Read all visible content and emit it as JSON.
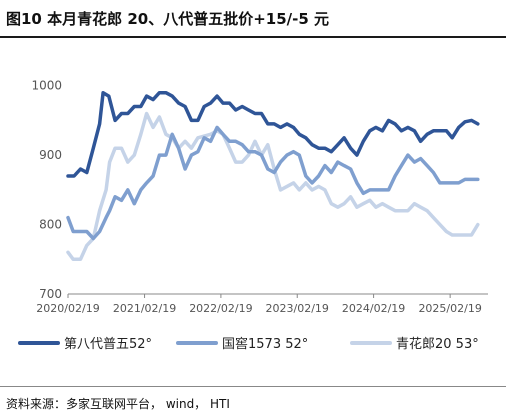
{
  "header": {
    "title": "图10 本月青花郎 20、八代普五批价+15/-5 元"
  },
  "footer": {
    "source": "资料来源：多家互联网平台， wind， HTI"
  },
  "colors": {
    "s1": "#2f5597",
    "s2": "#7f9fcf",
    "s3": "#c5d3e8",
    "axis": "#888888",
    "text": "#555555"
  },
  "chart_data": {
    "type": "line",
    "ylim": [
      700,
      1050
    ],
    "yticks": [
      700,
      800,
      900,
      1000
    ],
    "xlim": [
      "2020-02-19",
      "2025-08-19"
    ],
    "xticks": [
      "2020/02/19",
      "2021/02/19",
      "2022/02/19",
      "2023/02/19",
      "2024/02/19",
      "2025/02/19"
    ],
    "grid": false,
    "legend_position": "bottom",
    "series": [
      {
        "name": "第八代普五52°",
        "points": [
          [
            "2020-02-19",
            870
          ],
          [
            "2020-03-19",
            870
          ],
          [
            "2020-04-19",
            880
          ],
          [
            "2020-05-19",
            875
          ],
          [
            "2020-06-19",
            910
          ],
          [
            "2020-07-19",
            945
          ],
          [
            "2020-08-05",
            990
          ],
          [
            "2020-09-01",
            985
          ],
          [
            "2020-10-01",
            950
          ],
          [
            "2020-11-01",
            960
          ],
          [
            "2020-12-01",
            960
          ],
          [
            "2021-01-01",
            970
          ],
          [
            "2021-02-01",
            970
          ],
          [
            "2021-03-01",
            985
          ],
          [
            "2021-04-01",
            980
          ],
          [
            "2021-05-01",
            990
          ],
          [
            "2021-06-01",
            990
          ],
          [
            "2021-07-01",
            985
          ],
          [
            "2021-08-01",
            975
          ],
          [
            "2021-09-01",
            970
          ],
          [
            "2021-10-01",
            950
          ],
          [
            "2021-11-01",
            950
          ],
          [
            "2021-12-01",
            970
          ],
          [
            "2022-01-01",
            975
          ],
          [
            "2022-02-01",
            985
          ],
          [
            "2022-03-01",
            975
          ],
          [
            "2022-04-01",
            975
          ],
          [
            "2022-05-01",
            965
          ],
          [
            "2022-06-01",
            970
          ],
          [
            "2022-07-01",
            965
          ],
          [
            "2022-08-01",
            960
          ],
          [
            "2022-09-01",
            960
          ],
          [
            "2022-10-01",
            945
          ],
          [
            "2022-11-01",
            945
          ],
          [
            "2022-12-01",
            940
          ],
          [
            "2023-01-01",
            945
          ],
          [
            "2023-02-01",
            940
          ],
          [
            "2023-03-01",
            930
          ],
          [
            "2023-04-01",
            925
          ],
          [
            "2023-05-01",
            915
          ],
          [
            "2023-06-01",
            910
          ],
          [
            "2023-07-01",
            910
          ],
          [
            "2023-08-01",
            905
          ],
          [
            "2023-09-01",
            915
          ],
          [
            "2023-10-01",
            925
          ],
          [
            "2023-11-01",
            910
          ],
          [
            "2023-12-01",
            900
          ],
          [
            "2024-01-01",
            920
          ],
          [
            "2024-02-01",
            935
          ],
          [
            "2024-03-01",
            940
          ],
          [
            "2024-04-01",
            935
          ],
          [
            "2024-05-01",
            950
          ],
          [
            "2024-06-01",
            945
          ],
          [
            "2024-07-01",
            935
          ],
          [
            "2024-08-01",
            940
          ],
          [
            "2024-09-01",
            935
          ],
          [
            "2024-10-01",
            920
          ],
          [
            "2024-11-01",
            930
          ],
          [
            "2024-12-01",
            935
          ],
          [
            "2025-01-01",
            935
          ],
          [
            "2025-02-01",
            935
          ],
          [
            "2025-03-01",
            925
          ],
          [
            "2025-04-01",
            940
          ],
          [
            "2025-05-01",
            948
          ],
          [
            "2025-06-01",
            950
          ],
          [
            "2025-07-01",
            945
          ]
        ]
      },
      {
        "name": "国窖1573 52°",
        "points": [
          [
            "2020-02-19",
            810
          ],
          [
            "2020-03-15",
            790
          ],
          [
            "2020-04-19",
            790
          ],
          [
            "2020-05-19",
            790
          ],
          [
            "2020-06-19",
            780
          ],
          [
            "2020-07-19",
            790
          ],
          [
            "2020-08-19",
            810
          ],
          [
            "2020-09-05",
            820
          ],
          [
            "2020-10-01",
            840
          ],
          [
            "2020-11-01",
            835
          ],
          [
            "2020-12-01",
            850
          ],
          [
            "2021-01-01",
            830
          ],
          [
            "2021-02-01",
            850
          ],
          [
            "2021-03-01",
            860
          ],
          [
            "2021-04-01",
            870
          ],
          [
            "2021-05-01",
            900
          ],
          [
            "2021-06-01",
            900
          ],
          [
            "2021-07-01",
            930
          ],
          [
            "2021-08-01",
            910
          ],
          [
            "2021-09-01",
            880
          ],
          [
            "2021-10-01",
            900
          ],
          [
            "2021-11-01",
            905
          ],
          [
            "2021-12-01",
            925
          ],
          [
            "2022-01-01",
            920
          ],
          [
            "2022-02-01",
            940
          ],
          [
            "2022-03-01",
            930
          ],
          [
            "2022-04-01",
            920
          ],
          [
            "2022-05-01",
            920
          ],
          [
            "2022-06-01",
            915
          ],
          [
            "2022-07-01",
            905
          ],
          [
            "2022-08-01",
            905
          ],
          [
            "2022-09-01",
            900
          ],
          [
            "2022-10-01",
            880
          ],
          [
            "2022-11-01",
            875
          ],
          [
            "2022-12-01",
            890
          ],
          [
            "2023-01-01",
            900
          ],
          [
            "2023-02-01",
            905
          ],
          [
            "2023-03-01",
            900
          ],
          [
            "2023-04-01",
            870
          ],
          [
            "2023-05-01",
            860
          ],
          [
            "2023-06-01",
            870
          ],
          [
            "2023-07-01",
            885
          ],
          [
            "2023-08-01",
            875
          ],
          [
            "2023-09-01",
            890
          ],
          [
            "2023-10-01",
            885
          ],
          [
            "2023-11-01",
            880
          ],
          [
            "2023-12-01",
            860
          ],
          [
            "2024-01-01",
            845
          ],
          [
            "2024-02-01",
            850
          ],
          [
            "2024-03-01",
            850
          ],
          [
            "2024-04-01",
            850
          ],
          [
            "2024-05-01",
            850
          ],
          [
            "2024-06-01",
            870
          ],
          [
            "2024-07-01",
            885
          ],
          [
            "2024-08-01",
            900
          ],
          [
            "2024-09-01",
            890
          ],
          [
            "2024-10-01",
            895
          ],
          [
            "2024-11-01",
            885
          ],
          [
            "2024-12-01",
            875
          ],
          [
            "2025-01-01",
            860
          ],
          [
            "2025-02-01",
            860
          ],
          [
            "2025-03-01",
            860
          ],
          [
            "2025-04-01",
            860
          ],
          [
            "2025-05-01",
            865
          ],
          [
            "2025-06-01",
            865
          ],
          [
            "2025-07-01",
            865
          ]
        ]
      },
      {
        "name": "青花郎20 53°",
        "points": [
          [
            "2020-02-19",
            760
          ],
          [
            "2020-03-15",
            750
          ],
          [
            "2020-04-19",
            750
          ],
          [
            "2020-05-19",
            770
          ],
          [
            "2020-06-19",
            780
          ],
          [
            "2020-07-19",
            820
          ],
          [
            "2020-08-19",
            850
          ],
          [
            "2020-09-05",
            890
          ],
          [
            "2020-10-01",
            910
          ],
          [
            "2020-11-01",
            910
          ],
          [
            "2020-12-01",
            890
          ],
          [
            "2021-01-01",
            900
          ],
          [
            "2021-02-01",
            930
          ],
          [
            "2021-03-01",
            960
          ],
          [
            "2021-04-01",
            940
          ],
          [
            "2021-05-01",
            955
          ],
          [
            "2021-06-01",
            930
          ],
          [
            "2021-07-01",
            925
          ],
          [
            "2021-08-01",
            910
          ],
          [
            "2021-09-01",
            920
          ],
          [
            "2021-10-01",
            910
          ],
          [
            "2021-11-01",
            925
          ],
          [
            "2022-01-01",
            930
          ],
          [
            "2022-02-01",
            935
          ],
          [
            "2022-03-01",
            930
          ],
          [
            "2022-04-01",
            910
          ],
          [
            "2022-05-01",
            890
          ],
          [
            "2022-06-01",
            890
          ],
          [
            "2022-07-01",
            900
          ],
          [
            "2022-08-01",
            920
          ],
          [
            "2022-09-01",
            900
          ],
          [
            "2022-10-01",
            915
          ],
          [
            "2022-11-01",
            880
          ],
          [
            "2022-12-01",
            850
          ],
          [
            "2023-01-01",
            855
          ],
          [
            "2023-02-01",
            860
          ],
          [
            "2023-03-01",
            850
          ],
          [
            "2023-04-01",
            860
          ],
          [
            "2023-05-01",
            850
          ],
          [
            "2023-06-01",
            855
          ],
          [
            "2023-07-01",
            850
          ],
          [
            "2023-08-01",
            830
          ],
          [
            "2023-09-01",
            825
          ],
          [
            "2023-10-01",
            830
          ],
          [
            "2023-11-01",
            840
          ],
          [
            "2023-12-01",
            825
          ],
          [
            "2024-01-01",
            830
          ],
          [
            "2024-02-01",
            835
          ],
          [
            "2024-03-01",
            825
          ],
          [
            "2024-04-01",
            830
          ],
          [
            "2024-05-01",
            825
          ],
          [
            "2024-06-01",
            820
          ],
          [
            "2024-07-01",
            820
          ],
          [
            "2024-08-01",
            820
          ],
          [
            "2024-09-01",
            830
          ],
          [
            "2024-10-01",
            825
          ],
          [
            "2024-11-01",
            820
          ],
          [
            "2024-12-01",
            810
          ],
          [
            "2025-01-01",
            800
          ],
          [
            "2025-02-01",
            790
          ],
          [
            "2025-03-01",
            785
          ],
          [
            "2025-04-01",
            785
          ],
          [
            "2025-05-01",
            785
          ],
          [
            "2025-06-01",
            785
          ],
          [
            "2025-07-01",
            800
          ]
        ]
      }
    ]
  }
}
